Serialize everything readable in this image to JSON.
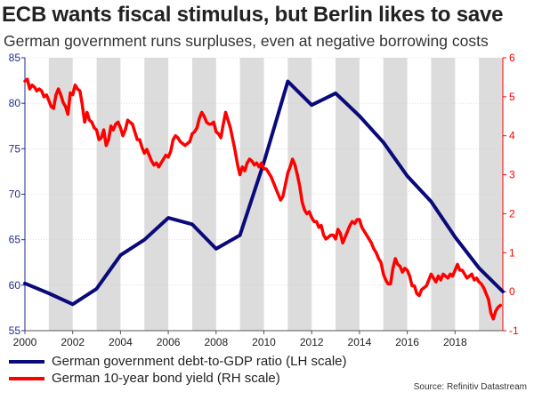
{
  "title": "ECB wants fiscal stimulus, but Berlin likes to save",
  "subtitle": "German government runs surpluses, even at negative borrowing costs",
  "source": "Source: Refinitiv Datastream",
  "chart_data": {
    "type": "line",
    "x_axis": {
      "range": [
        2000,
        2020
      ],
      "ticks": [
        2000,
        2002,
        2004,
        2006,
        2008,
        2010,
        2012,
        2014,
        2016,
        2018
      ],
      "tick_labels": [
        "2000",
        "2002",
        "2004",
        "2006",
        "2008",
        "2010",
        "2012",
        "2014",
        "2016",
        "2018"
      ],
      "shaded_bands": [
        [
          2001,
          2002
        ],
        [
          2003,
          2004
        ],
        [
          2005,
          2006
        ],
        [
          2007,
          2008
        ],
        [
          2009,
          2010
        ],
        [
          2011,
          2012
        ],
        [
          2013,
          2014
        ],
        [
          2015,
          2016
        ],
        [
          2017,
          2018
        ],
        [
          2019,
          2020
        ]
      ]
    },
    "y_left": {
      "range": [
        55,
        85
      ],
      "ticks": [
        55,
        60,
        65,
        70,
        75,
        80,
        85
      ],
      "tick_labels": [
        "55",
        "60",
        "65",
        "70",
        "75",
        "80",
        "85"
      ],
      "color": "#1f2d8c"
    },
    "y_right": {
      "range": [
        -1,
        6
      ],
      "ticks": [
        -1,
        0,
        1,
        2,
        3,
        4,
        5,
        6
      ],
      "tick_labels": [
        "-1",
        "0",
        "1",
        "2",
        "3",
        "4",
        "5",
        "6"
      ],
      "color": "#ff0000"
    },
    "grid": true,
    "legend_position": "bottom-left",
    "series": [
      {
        "name": "German government debt-to-GDP ratio (LH scale)",
        "axis": "left",
        "color": "#0a0a7a",
        "x": [
          2000,
          2001,
          2002,
          2003,
          2004,
          2005,
          2006,
          2007,
          2008,
          2009,
          2010,
          2011,
          2012,
          2013,
          2014,
          2015,
          2016,
          2017,
          2018,
          2019,
          2020
        ],
        "y": [
          60.2,
          59.1,
          57.9,
          59.6,
          63.3,
          65.0,
          67.4,
          66.7,
          64.0,
          65.5,
          73.5,
          82.4,
          79.8,
          81.1,
          78.6,
          75.7,
          72.0,
          69.2,
          65.3,
          61.9,
          59.3
        ]
      },
      {
        "name": "German 10-year bond yield (RH scale)",
        "axis": "right",
        "color": "#ff0000",
        "x": [
          2000.0,
          2000.1,
          2000.2,
          2000.3,
          2000.4,
          2000.5,
          2000.6,
          2000.7,
          2000.8,
          2000.9,
          2001.0,
          2001.1,
          2001.2,
          2001.3,
          2001.4,
          2001.5,
          2001.6,
          2001.7,
          2001.8,
          2001.9,
          2002.0,
          2002.1,
          2002.2,
          2002.3,
          2002.4,
          2002.5,
          2002.6,
          2002.7,
          2002.8,
          2002.9,
          2003.0,
          2003.1,
          2003.2,
          2003.3,
          2003.4,
          2003.5,
          2003.6,
          2003.7,
          2003.8,
          2003.9,
          2004.0,
          2004.1,
          2004.2,
          2004.3,
          2004.4,
          2004.5,
          2004.6,
          2004.7,
          2004.8,
          2004.9,
          2005.0,
          2005.1,
          2005.2,
          2005.3,
          2005.4,
          2005.5,
          2005.6,
          2005.7,
          2005.8,
          2005.9,
          2006.0,
          2006.1,
          2006.2,
          2006.3,
          2006.4,
          2006.5,
          2006.6,
          2006.7,
          2006.8,
          2006.9,
          2007.0,
          2007.1,
          2007.2,
          2007.3,
          2007.4,
          2007.5,
          2007.6,
          2007.7,
          2007.8,
          2007.9,
          2008.0,
          2008.1,
          2008.2,
          2008.3,
          2008.4,
          2008.5,
          2008.6,
          2008.7,
          2008.8,
          2008.9,
          2009.0,
          2009.1,
          2009.2,
          2009.3,
          2009.4,
          2009.5,
          2009.6,
          2009.7,
          2009.8,
          2009.9,
          2010.0,
          2010.1,
          2010.2,
          2010.3,
          2010.4,
          2010.5,
          2010.6,
          2010.7,
          2010.8,
          2010.9,
          2011.0,
          2011.1,
          2011.2,
          2011.3,
          2011.4,
          2011.5,
          2011.6,
          2011.7,
          2011.8,
          2011.9,
          2012.0,
          2012.1,
          2012.2,
          2012.3,
          2012.4,
          2012.5,
          2012.6,
          2012.7,
          2012.8,
          2012.9,
          2013.0,
          2013.1,
          2013.2,
          2013.3,
          2013.4,
          2013.5,
          2013.6,
          2013.7,
          2013.8,
          2013.9,
          2014.0,
          2014.1,
          2014.2,
          2014.3,
          2014.4,
          2014.5,
          2014.6,
          2014.7,
          2014.8,
          2014.9,
          2015.0,
          2015.1,
          2015.2,
          2015.3,
          2015.4,
          2015.5,
          2015.6,
          2015.7,
          2015.8,
          2015.9,
          2016.0,
          2016.1,
          2016.2,
          2016.3,
          2016.4,
          2016.5,
          2016.6,
          2016.7,
          2016.8,
          2016.9,
          2017.0,
          2017.1,
          2017.2,
          2017.3,
          2017.4,
          2017.5,
          2017.6,
          2017.7,
          2017.8,
          2017.9,
          2018.0,
          2018.1,
          2018.2,
          2018.3,
          2018.4,
          2018.5,
          2018.6,
          2018.7,
          2018.8,
          2018.9,
          2019.0,
          2019.1,
          2019.2,
          2019.3,
          2019.4,
          2019.5,
          2019.6,
          2019.7,
          2019.8,
          2019.9
        ],
        "y": [
          5.4,
          5.45,
          5.2,
          5.3,
          5.25,
          5.15,
          5.2,
          5.15,
          5.0,
          5.05,
          4.9,
          4.75,
          4.7,
          5.05,
          5.2,
          5.05,
          4.85,
          4.75,
          4.55,
          5.1,
          5.05,
          5.3,
          5.2,
          5.15,
          4.8,
          4.35,
          4.6,
          4.4,
          4.35,
          4.2,
          4.15,
          3.9,
          3.95,
          4.15,
          3.75,
          3.9,
          4.25,
          4.15,
          4.3,
          4.35,
          4.2,
          4.0,
          4.15,
          4.4,
          4.35,
          4.3,
          4.1,
          3.9,
          3.9,
          3.7,
          3.55,
          3.65,
          3.5,
          3.35,
          3.25,
          3.3,
          3.2,
          3.3,
          3.4,
          3.5,
          3.45,
          3.6,
          3.9,
          4.0,
          3.95,
          3.85,
          3.8,
          3.75,
          3.8,
          3.85,
          4.05,
          4.1,
          4.2,
          4.45,
          4.6,
          4.5,
          4.35,
          4.3,
          4.3,
          4.35,
          4.1,
          4.05,
          3.95,
          4.3,
          4.6,
          4.4,
          4.2,
          3.9,
          3.6,
          3.25,
          3.0,
          3.2,
          3.1,
          3.3,
          3.4,
          3.35,
          3.25,
          3.3,
          3.2,
          3.3,
          3.15,
          3.15,
          3.05,
          2.95,
          2.8,
          2.65,
          2.5,
          2.35,
          2.45,
          2.75,
          3.05,
          3.2,
          3.4,
          3.25,
          3.0,
          2.7,
          2.3,
          2.1,
          2.0,
          2.05,
          1.9,
          1.8,
          1.8,
          1.65,
          1.7,
          1.45,
          1.35,
          1.4,
          1.45,
          1.45,
          1.35,
          1.6,
          1.5,
          1.25,
          1.4,
          1.55,
          1.7,
          1.8,
          1.75,
          1.85,
          1.85,
          1.65,
          1.55,
          1.45,
          1.35,
          1.25,
          1.1,
          1.0,
          0.85,
          0.75,
          0.45,
          0.3,
          0.2,
          0.2,
          0.6,
          0.85,
          0.7,
          0.65,
          0.5,
          0.6,
          0.55,
          0.4,
          0.15,
          0.15,
          -0.05,
          -0.1,
          0.05,
          0.1,
          0.15,
          0.3,
          0.45,
          0.35,
          0.25,
          0.4,
          0.3,
          0.45,
          0.4,
          0.35,
          0.45,
          0.4,
          0.55,
          0.7,
          0.55,
          0.55,
          0.45,
          0.35,
          0.4,
          0.45,
          0.3,
          0.35,
          0.25,
          0.2,
          0.1,
          -0.05,
          -0.2,
          -0.55,
          -0.7,
          -0.5,
          -0.4,
          -0.35
        ]
      }
    ]
  }
}
